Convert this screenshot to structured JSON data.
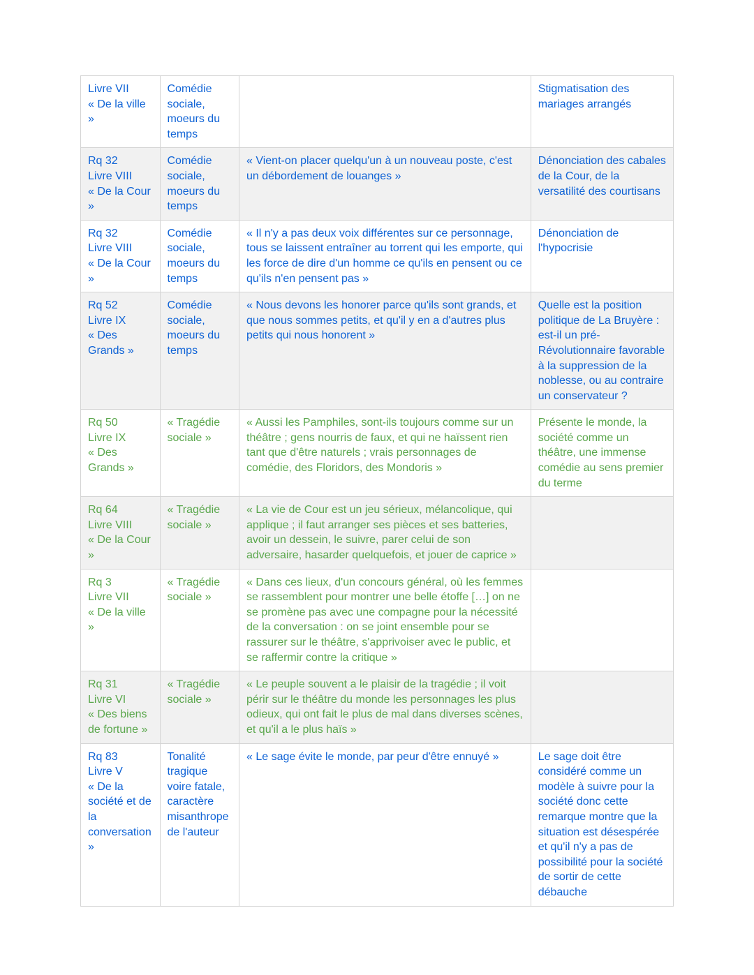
{
  "table": {
    "columns": [
      "reference",
      "theme",
      "citation",
      "analyse"
    ],
    "col_widths_pct": [
      12.5,
      12.5,
      46,
      22.5
    ],
    "border_color": "#d4d4d4",
    "row_bg": {
      "even": "#ffffff",
      "odd": "#f1f1f1"
    },
    "text_colors": {
      "blue": "#0f63d6",
      "green": "#5aa74c"
    },
    "font_size_pt": 12,
    "rows": [
      {
        "bg": "even",
        "color": "blue",
        "c1": "Livre VII\n« De la ville »",
        "c2": "Comédie sociale, moeurs du temps",
        "c3": "",
        "c4": "Stigmatisation des mariages arrangés"
      },
      {
        "bg": "odd",
        "color": "blue",
        "c1": "Rq 32\nLivre VIII\n« De la Cour »",
        "c2": "Comédie sociale, moeurs du temps",
        "c3": "« Vient-on placer quelqu'un à un nouveau poste, c'est un débordement de louanges »",
        "c4": "Dénonciation des cabales de la Cour, de la versatilité des courtisans"
      },
      {
        "bg": "even",
        "color": "blue",
        "c1": "Rq 32\nLivre VIII\n« De la Cour »",
        "c2": "Comédie sociale, moeurs du temps",
        "c3": "« Il n'y a pas deux voix différentes sur ce personnage, tous se laissent entraîner au torrent qui les emporte, qui les force de dire d'un homme ce qu'ils en pensent ou ce qu'ils n'en pensent pas »",
        "c4": "Dénonciation de l'hypocrisie"
      },
      {
        "bg": "odd",
        "color": "blue",
        "c1": "Rq 52\nLivre IX\n« Des Grands »",
        "c2": "Comédie sociale, moeurs du temps",
        "c3": "« Nous devons les honorer parce qu'ils sont grands, et que nous sommes petits, et qu'il y en a d'autres plus petits qui nous honorent »",
        "c4": "Quelle est la position politique de La Bruyère : est-il un pré-Révolutionnaire favorable à la suppression de la noblesse, ou au contraire un conservateur ?"
      },
      {
        "bg": "even",
        "color": "green",
        "c1": "Rq 50\nLivre IX\n« Des Grands »",
        "c2": "« Tragédie sociale »",
        "c3": "« Aussi les Pamphiles, sont-ils toujours comme sur un théâtre ; gens nourris de faux, et qui ne haïssent rien tant que d'être naturels ; vrais personnages de comédie, des Floridors, des Mondoris »",
        "c4": "Présente le monde, la société comme un théâtre, une immense comédie au sens premier du terme"
      },
      {
        "bg": "odd",
        "color": "green",
        "c1": "Rq 64\nLivre VIII\n« De la Cour »",
        "c2": "« Tragédie sociale »",
        "c3": "« La vie de Cour est un jeu sérieux, mélancolique, qui applique ; il faut arranger ses pièces et ses batteries, avoir un dessein, le suivre, parer celui de son adversaire, hasarder quelquefois, et jouer de caprice »",
        "c4": ""
      },
      {
        "bg": "even",
        "color": "green",
        "c1": "Rq 3\nLivre VII\n« De la ville »",
        "c2": "« Tragédie sociale »",
        "c3": "« Dans ces lieux, d'un concours général, où les femmes se rassemblent pour montrer une belle étoffe […] on ne se promène pas avec une compagne pour la nécessité de la conversation : on se joint ensemble pour se rassurer sur le théâtre, s'apprivoiser avec le public, et se raffermir contre la critique »",
        "c4": ""
      },
      {
        "bg": "odd",
        "color": "green",
        "c1": "Rq 31\nLivre VI\n« Des biens de fortune »",
        "c2": "« Tragédie sociale »",
        "c3": "« Le peuple souvent a le plaisir de la tragédie ; il voit périr sur le théâtre du monde les personnages les plus odieux, qui ont fait le plus de mal dans diverses scènes, et qu'il a le plus haïs »",
        "c4": ""
      },
      {
        "bg": "even",
        "color": "blue",
        "c1": "Rq 83\nLivre V\n« De la société et de la conversation »",
        "c2": "Tonalité tragique voire fatale, caractère misanthrope de l'auteur",
        "c3": "« Le sage évite le monde, par peur d'être ennuyé »",
        "c4": "Le sage doit être considéré comme un modèle à suivre pour la société donc  cette remarque montre que la situation est désespérée et qu'il n'y a pas de possibilité pour la société de sortir de cette débauche"
      }
    ]
  }
}
